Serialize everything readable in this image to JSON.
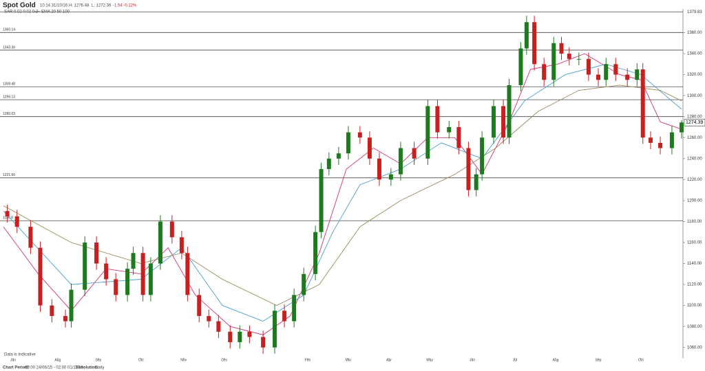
{
  "header": {
    "title": "Spot Gold",
    "time": "10:14 31/10/16",
    "high": "H: 1276.48",
    "low": "L: 1272.36",
    "change": "-1.54 -0.12%",
    "sar": "SAR 0.02 0.02 0.2",
    "ema": "EMA 20 50 100"
  },
  "footer": {
    "period_label": "Chart Period:",
    "period": "03:00 24/06/15 - 02:00 01/11/16",
    "resolution_label": "Resolution:",
    "resolution": "Daily",
    "note": "Data is Indicative"
  },
  "chart_data": {
    "type": "candlestick",
    "up_color": "#1e7a1e",
    "down_color": "#c62020",
    "xlim": [
      0,
      350
    ],
    "ylim": [
      1050,
      1380
    ],
    "xticks": [
      {
        "value": 5,
        "label": "Jun"
      },
      {
        "value": 28,
        "label": "Aug"
      },
      {
        "value": 49,
        "label": "Sep"
      },
      {
        "value": 71,
        "label": "Oct"
      },
      {
        "value": 93,
        "label": "Nov"
      },
      {
        "value": 114,
        "label": "Dec"
      },
      {
        "value": 157,
        "label": "Feb"
      },
      {
        "value": 178,
        "label": "Mar"
      },
      {
        "value": 199,
        "label": "Apr"
      },
      {
        "value": 220,
        "label": "May"
      },
      {
        "value": 242,
        "label": "Jun"
      },
      {
        "value": 264,
        "label": "Jul"
      },
      {
        "value": 285,
        "label": "Aug"
      },
      {
        "value": 307,
        "label": "Sep"
      },
      {
        "value": 329,
        "label": "Oct"
      }
    ],
    "yticks": [
      {
        "value": 1060,
        "label": "1060.00"
      },
      {
        "value": 1080,
        "label": "1080.00"
      },
      {
        "value": 1100,
        "label": "1100.00"
      },
      {
        "value": 1120,
        "label": "1120.00"
      },
      {
        "value": 1140,
        "label": "1140.00"
      },
      {
        "value": 1160,
        "label": "1160.00"
      },
      {
        "value": 1180,
        "label": "1180.00"
      },
      {
        "value": 1200,
        "label": "1200.00"
      },
      {
        "value": 1220,
        "label": "1220.00"
      },
      {
        "value": 1240,
        "label": "1240.00"
      },
      {
        "value": 1260,
        "label": "1260.00"
      },
      {
        "value": 1280,
        "label": "1280.00"
      },
      {
        "value": 1300,
        "label": "1300.00"
      },
      {
        "value": 1320,
        "label": "1320.00"
      },
      {
        "value": 1340,
        "label": "1340.00"
      },
      {
        "value": 1360,
        "label": "1360.00"
      }
    ],
    "levels": [
      1379.83,
      1360.14,
      1343.36,
      1308.48,
      1296.13,
      1280.03,
      1221.66,
      1180.8
    ],
    "x": [
      2,
      7,
      14,
      19,
      25,
      32,
      35,
      42,
      48,
      53,
      58,
      64,
      67,
      72,
      76,
      81,
      87,
      92,
      95,
      101,
      106,
      111,
      117,
      122,
      127,
      134,
      140,
      145,
      150,
      155,
      161,
      164,
      168,
      173,
      178,
      184,
      189,
      194,
      200,
      205,
      212,
      219,
      224,
      230,
      235,
      240,
      244,
      247,
      253,
      258,
      261,
      267,
      270,
      274,
      279,
      284,
      288,
      292,
      297,
      302,
      307,
      311,
      316,
      322,
      327,
      330,
      334,
      339,
      345,
      350
    ],
    "open": [
      1190,
      1185,
      1175,
      1155,
      1100,
      1090,
      1085,
      1115,
      1160,
      1140,
      1125,
      1110,
      1135,
      1150,
      1110,
      1140,
      1180,
      1165,
      1150,
      1110,
      1090,
      1085,
      1075,
      1065,
      1075,
      1070,
      1060,
      1095,
      1085,
      1110,
      1130,
      1170,
      1230,
      1240,
      1245,
      1265,
      1260,
      1240,
      1220,
      1225,
      1250,
      1240,
      1290,
      1265,
      1270,
      1250,
      1210,
      1225,
      1260,
      1290,
      1260,
      1310,
      1345,
      1370,
      1330,
      1315,
      1350,
      1340,
      1335,
      1335,
      1320,
      1315,
      1330,
      1320,
      1315,
      1325,
      1260,
      1255,
      1250,
      1265
    ],
    "high": [
      1196,
      1191,
      1181,
      1161,
      1106,
      1096,
      1121,
      1166,
      1166,
      1146,
      1131,
      1141,
      1156,
      1156,
      1146,
      1186,
      1186,
      1171,
      1156,
      1116,
      1096,
      1091,
      1081,
      1081,
      1081,
      1076,
      1101,
      1101,
      1116,
      1136,
      1176,
      1236,
      1246,
      1251,
      1271,
      1271,
      1266,
      1246,
      1231,
      1256,
      1256,
      1296,
      1296,
      1276,
      1276,
      1256,
      1231,
      1266,
      1296,
      1296,
      1316,
      1351,
      1376,
      1376,
      1336,
      1356,
      1356,
      1346,
      1341,
      1341,
      1326,
      1336,
      1336,
      1326,
      1331,
      1331,
      1266,
      1261,
      1271,
      1276.48
    ],
    "low": [
      1179,
      1169,
      1149,
      1094,
      1084,
      1079,
      1079,
      1109,
      1134,
      1119,
      1104,
      1104,
      1129,
      1104,
      1104,
      1134,
      1159,
      1144,
      1104,
      1084,
      1079,
      1069,
      1059,
      1059,
      1064,
      1054,
      1054,
      1079,
      1079,
      1104,
      1124,
      1164,
      1224,
      1234,
      1239,
      1254,
      1234,
      1214,
      1214,
      1219,
      1234,
      1234,
      1259,
      1259,
      1244,
      1204,
      1204,
      1219,
      1254,
      1254,
      1254,
      1304,
      1339,
      1324,
      1309,
      1309,
      1334,
      1329,
      1329,
      1314,
      1309,
      1309,
      1314,
      1309,
      1309,
      1254,
      1249,
      1244,
      1244,
      1259
    ],
    "close": [
      1185,
      1175,
      1155,
      1100,
      1090,
      1085,
      1115,
      1160,
      1140,
      1125,
      1110,
      1135,
      1150,
      1110,
      1140,
      1180,
      1165,
      1150,
      1110,
      1090,
      1085,
      1075,
      1065,
      1075,
      1070,
      1060,
      1095,
      1085,
      1110,
      1130,
      1170,
      1230,
      1240,
      1245,
      1265,
      1260,
      1240,
      1220,
      1225,
      1250,
      1240,
      1290,
      1265,
      1270,
      1250,
      1210,
      1225,
      1260,
      1290,
      1260,
      1310,
      1345,
      1370,
      1330,
      1315,
      1350,
      1340,
      1335,
      1335,
      1320,
      1315,
      1330,
      1320,
      1315,
      1325,
      1260,
      1255,
      1250,
      1265,
      1274.39
    ],
    "lines": [
      {
        "color": "#d0307a",
        "x": [
          0,
          18,
          35,
          53,
          71,
          85,
          99,
          117,
          134,
          148,
          163,
          177,
          191,
          205,
          219,
          233,
          247,
          261,
          272,
          286,
          300,
          318,
          329,
          339,
          350
        ],
        "values": [
          1175,
          1130,
          1095,
          1135,
          1130,
          1155,
          1110,
          1080,
          1072,
          1090,
          1150,
          1230,
          1250,
          1235,
          1260,
          1260,
          1225,
          1275,
          1325,
          1330,
          1340,
          1320,
          1315,
          1275,
          1268
        ]
      },
      {
        "color": "#4a9fd0",
        "x": [
          0,
          35,
          71,
          92,
          113,
          134,
          155,
          170,
          184,
          205,
          226,
          247,
          269,
          290,
          311,
          329,
          350
        ],
        "values": [
          1190,
          1120,
          1125,
          1155,
          1100,
          1085,
          1110,
          1170,
          1215,
          1230,
          1255,
          1240,
          1295,
          1320,
          1330,
          1320,
          1287
        ]
      },
      {
        "color": "#9a8a5a",
        "x": [
          0,
          35,
          71,
          92,
          113,
          141,
          163,
          184,
          205,
          233,
          254,
          276,
          297,
          318,
          339,
          350
        ],
        "values": [
          1195,
          1160,
          1140,
          1150,
          1125,
          1100,
          1120,
          1175,
          1200,
          1225,
          1250,
          1285,
          1305,
          1310,
          1305,
          1295
        ]
      }
    ]
  }
}
